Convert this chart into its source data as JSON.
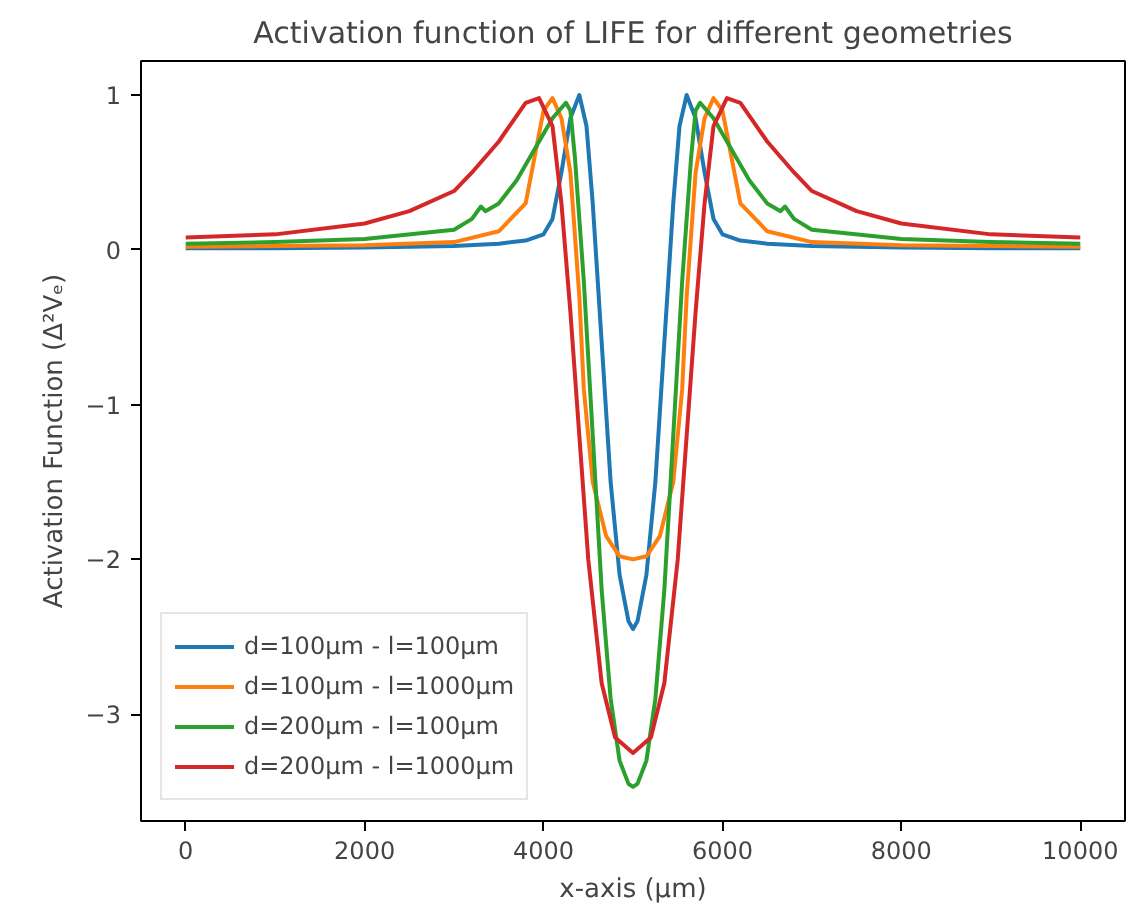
{
  "chart_data": {
    "type": "line",
    "title": "Activation function of LIFE for different geometries",
    "xlabel": "x-axis (μm)",
    "ylabel": "Activation Function (Δ²Vₑ)",
    "xlim": [
      -500,
      10500
    ],
    "ylim": [
      -3.69,
      1.22
    ],
    "xticks": [
      0,
      2000,
      4000,
      6000,
      8000,
      10000
    ],
    "yticks": [
      {
        "value": -3,
        "label": "−3"
      },
      {
        "value": -2,
        "label": "−2"
      },
      {
        "value": -1,
        "label": "−1"
      },
      0,
      1
    ],
    "grid": false,
    "legend": "bottom left",
    "marker": "none",
    "line_style": "solid",
    "series": [
      {
        "name": "d=100μm - l=100μm",
        "color": "#1f77b4",
        "x": [
          0,
          1000,
          2000,
          3000,
          3500,
          3800,
          4000,
          4100,
          4200,
          4300,
          4400,
          4480,
          4550,
          4650,
          4750,
          4850,
          4950,
          5000,
          5050,
          5150,
          5250,
          5350,
          5450,
          5520,
          5600,
          5700,
          5800,
          5900,
          6000,
          6200,
          6500,
          7000,
          8000,
          9000,
          10000
        ],
        "values": [
          0.01,
          0.01,
          0.015,
          0.025,
          0.04,
          0.06,
          0.1,
          0.2,
          0.5,
          0.85,
          1.0,
          0.8,
          0.3,
          -0.6,
          -1.5,
          -2.1,
          -2.4,
          -2.45,
          -2.4,
          -2.1,
          -1.5,
          -0.6,
          0.3,
          0.8,
          1.0,
          0.85,
          0.5,
          0.2,
          0.1,
          0.06,
          0.04,
          0.025,
          0.015,
          0.01,
          0.01
        ]
      },
      {
        "name": "d=100μm - l=1000μm",
        "color": "#ff7f0e",
        "x": [
          0,
          1000,
          2000,
          3000,
          3500,
          3800,
          3900,
          4000,
          4100,
          4200,
          4300,
          4400,
          4450,
          4550,
          4700,
          4850,
          5000,
          5150,
          5300,
          5450,
          5550,
          5600,
          5700,
          5800,
          5900,
          6000,
          6100,
          6200,
          6500,
          7000,
          8000,
          9000,
          10000
        ],
        "values": [
          0.02,
          0.025,
          0.03,
          0.05,
          0.12,
          0.3,
          0.6,
          0.9,
          0.98,
          0.85,
          0.5,
          -0.3,
          -0.9,
          -1.5,
          -1.85,
          -1.98,
          -2.0,
          -1.98,
          -1.85,
          -1.5,
          -0.9,
          -0.3,
          0.5,
          0.85,
          0.98,
          0.9,
          0.6,
          0.3,
          0.12,
          0.05,
          0.03,
          0.025,
          0.02
        ]
      },
      {
        "name": "d=200μm - l=100μm",
        "color": "#2ca02c",
        "x": [
          0,
          1000,
          2000,
          3000,
          3200,
          3300,
          3350,
          3500,
          3700,
          3900,
          4100,
          4250,
          4300,
          4350,
          4450,
          4550,
          4650,
          4750,
          4850,
          4950,
          5000,
          5050,
          5150,
          5250,
          5350,
          5450,
          5550,
          5650,
          5700,
          5750,
          5900,
          6100,
          6300,
          6500,
          6650,
          6700,
          6800,
          7000,
          8000,
          9000,
          10000
        ],
        "values": [
          0.04,
          0.05,
          0.07,
          0.13,
          0.2,
          0.28,
          0.25,
          0.3,
          0.45,
          0.65,
          0.85,
          0.95,
          0.9,
          0.6,
          -0.2,
          -1.2,
          -2.2,
          -2.9,
          -3.3,
          -3.45,
          -3.47,
          -3.45,
          -3.3,
          -2.9,
          -2.2,
          -1.2,
          -0.2,
          0.6,
          0.9,
          0.95,
          0.85,
          0.65,
          0.45,
          0.3,
          0.25,
          0.28,
          0.2,
          0.13,
          0.07,
          0.05,
          0.04
        ]
      },
      {
        "name": "d=200μm - l=1000μm",
        "color": "#d62728",
        "x": [
          0,
          1000,
          2000,
          2500,
          3000,
          3200,
          3500,
          3800,
          3950,
          4100,
          4200,
          4300,
          4400,
          4500,
          4650,
          4800,
          5000,
          5200,
          5350,
          5500,
          5600,
          5700,
          5800,
          5900,
          6050,
          6200,
          6500,
          6800,
          7000,
          7500,
          8000,
          9000,
          10000
        ],
        "values": [
          0.08,
          0.1,
          0.17,
          0.25,
          0.38,
          0.5,
          0.7,
          0.95,
          0.98,
          0.8,
          0.3,
          -0.4,
          -1.2,
          -2.0,
          -2.8,
          -3.15,
          -3.25,
          -3.15,
          -2.8,
          -2.0,
          -1.2,
          -0.4,
          0.3,
          0.8,
          0.98,
          0.95,
          0.7,
          0.5,
          0.38,
          0.25,
          0.17,
          0.1,
          0.08
        ]
      }
    ]
  }
}
